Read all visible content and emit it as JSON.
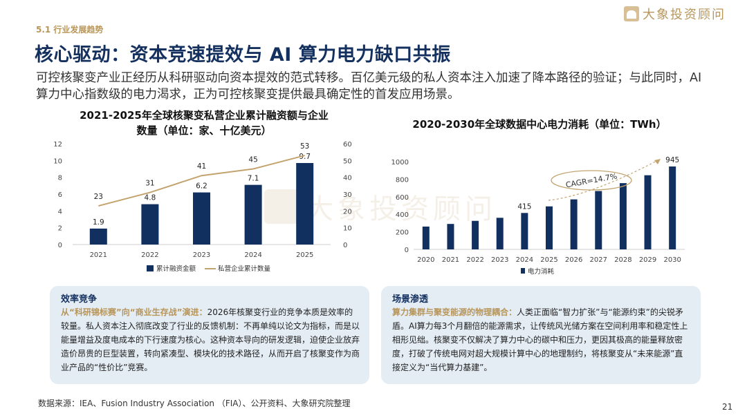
{
  "section_tag": "5.1 行业发展趋势",
  "title": "核心驱动：资本竞速提效与 AI 算力电力缺口共振",
  "intro": "可控核聚变产业正经历从科研驱动向资本提效的范式转移。百亿美元级的私人资本注入加速了降本路径的验证；与此同时，AI 算力中心指数级的电力渴求，正为可控核聚变提供最具确定性的首发应用场景。",
  "brand": "大象投资顾问",
  "colors": {
    "navy": "#13305e",
    "gold": "#b8965a",
    "bar": "#12305f",
    "line": "#c2a36e",
    "card_bg": "#e4ecf4"
  },
  "chart_data": [
    {
      "type": "bar",
      "title_line1": "2021-2025年全球核聚变私营企业累计融资额与企业",
      "title_line2": "数量（单位：家、十亿美元）",
      "categories": [
        "2021",
        "2022",
        "2023",
        "2024",
        "2025"
      ],
      "series": [
        {
          "name": "累计融资金额",
          "type": "bar",
          "axis": "left",
          "values": [
            1.9,
            4.8,
            6.2,
            7.1,
            9.7
          ],
          "labels": [
            "1.9",
            "4.8",
            "6.2",
            "7.1",
            "9.7"
          ]
        },
        {
          "name": "私营企业累计数量",
          "type": "line",
          "axis": "right",
          "values": [
            23,
            31,
            41,
            45,
            53
          ],
          "labels": [
            "23",
            "31",
            "41",
            "45",
            "53"
          ]
        }
      ],
      "ylim_left": [
        0,
        12
      ],
      "yticks_left": [
        "0",
        "2",
        "4",
        "6",
        "8",
        "10",
        "12"
      ],
      "ylim_right": [
        0,
        60
      ],
      "yticks_right": [
        "0",
        "10",
        "20",
        "30",
        "40",
        "50",
        "60"
      ]
    },
    {
      "type": "bar",
      "title": "2020-2030年全球数据中心电力消耗（单位：TWh）",
      "categories": [
        "2020",
        "2021",
        "2022",
        "2023",
        "2024",
        "2025",
        "2026",
        "2027",
        "2028",
        "2029",
        "2030"
      ],
      "series": [
        {
          "name": "电力消耗",
          "values": [
            260,
            290,
            325,
            360,
            415,
            490,
            570,
            665,
            755,
            845,
            945
          ]
        }
      ],
      "data_labels": [
        {
          "index": 4,
          "text": "415"
        },
        {
          "index": 10,
          "text": "945"
        }
      ],
      "ylim": [
        0,
        1000
      ],
      "yticks": [
        "0",
        "200",
        "400",
        "600",
        "800",
        "1000"
      ],
      "annotation": "CAGR=14.7%"
    }
  ],
  "cards": [
    {
      "heading": "效率竞争",
      "highlight": "从“科研锦标赛”向“商业生存战”演进：",
      "body": "2026年核聚变行业的竞争本质是效率的较量。私人资本注入彻底改变了行业的反馈机制：不再单纯以论文为指标，而是以能量增益及度电成本的下行速度为核心。这种资本导向的研发逻辑，迫使企业放弃造价昂贵的巨型装置，转向紧凑型、模块化的技术路径，从而开启了核聚变作为商业产品的“性价比”竞赛。"
    },
    {
      "heading": "场景渗透",
      "highlight": "算力集群与聚变能源的物理耦合：",
      "body": "人类正面临“智力扩张”与“能源约束”的尖锐矛盾。AI算力每3个月翻倍的能源需求，让传统风光储方案在空间利用率和稳定性上相形见绌。核聚变不仅解决了算力中心的碳中和压力，更因其极高的能量释放密度，打破了传统电网对超大规模计算中心的地理制约，将核聚变从“未来能源”直接定义为“当代算力基建”。"
    }
  ],
  "source": "数据来源：IEA、Fusion Industry Association （FIA）、公开资料、大象研究院整理",
  "page_number": "21"
}
